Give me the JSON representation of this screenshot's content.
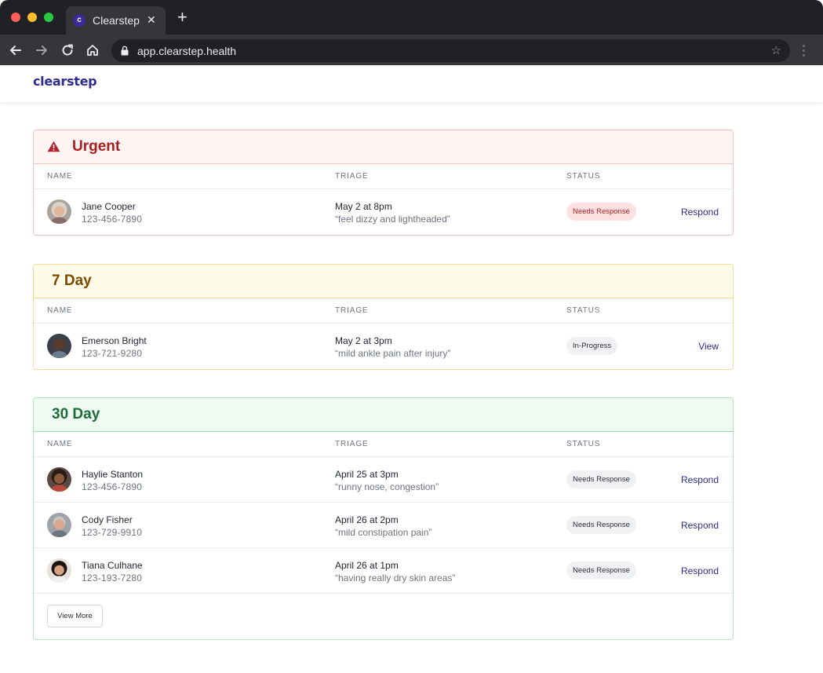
{
  "browser": {
    "tab_title": "Clearstep",
    "favicon_letter": "c",
    "close_glyph": "✕",
    "new_tab_glyph": "+",
    "url": "app.clearstep.health",
    "star_glyph": "☆",
    "icons": [
      "close-icon",
      "plus-icon",
      "back-arrow-icon",
      "forward-arrow-icon",
      "reload-icon",
      "home-icon",
      "lock-icon",
      "star-icon",
      "kebab-menu-icon"
    ]
  },
  "app": {
    "logo": "clearstep"
  },
  "columns": {
    "name": "NAME",
    "triage": "TRIAGE",
    "status": "STATUS"
  },
  "sections": {
    "urgent": {
      "title": "Urgent",
      "icon": "warning-icon",
      "color": "#a91f22",
      "patients": [
        {
          "name": "Jane Cooper",
          "phone": "123-456-7890",
          "date": "May 2 at 8pm",
          "note": "“feel dizzy and lightheaded”",
          "status": "Needs Response",
          "action": "Respond"
        }
      ]
    },
    "seven_day": {
      "title": "7 Day",
      "color": "#7a4a00",
      "patients": [
        {
          "name": "Emerson Bright",
          "phone": "123-721-9280",
          "date": "May 2 at 3pm",
          "note": "“mild ankle pain after injury”",
          "status": "In-Progress",
          "action": "View"
        }
      ]
    },
    "thirty_day": {
      "title": "30 Day",
      "color": "#1f6b36",
      "patients": [
        {
          "name": "Haylie Stanton",
          "phone": "123-456-7890",
          "date": "April 25 at 3pm",
          "note": "“runny nose, congestion”",
          "status": "Needs Response",
          "action": "Respond"
        },
        {
          "name": "Cody Fisher",
          "phone": "123-729-9910",
          "date": "April 26 at 2pm",
          "note": "“mild constipation pain”",
          "status": "Needs Response",
          "action": "Respond"
        },
        {
          "name": "Tiana Culhane",
          "phone": "123-193-7280",
          "date": "April 26 at 1pm",
          "note": "“having really dry skin areas”",
          "status": "Needs Response",
          "action": "Respond"
        }
      ],
      "view_more": "View More"
    }
  },
  "colors": {
    "brand": "#2f2b8f",
    "alert_badge_bg": "#fde0e0",
    "alert_badge_text": "#b4202a"
  }
}
